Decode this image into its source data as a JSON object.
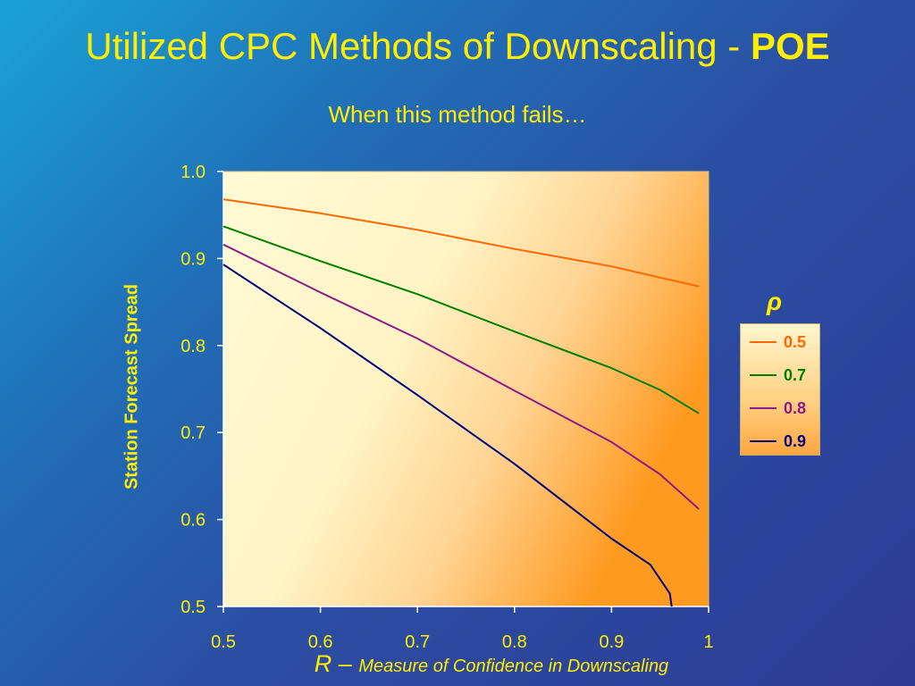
{
  "slide": {
    "title_main": "Utilized CPC Methods of Downscaling - ",
    "title_bold": "POE",
    "subtitle": "When this method fails…"
  },
  "chart_data": {
    "type": "line",
    "xlabel_prefix": "R – ",
    "xlabel": "Measure of Confidence in Downscaling",
    "ylabel": "Station Forecast Spread",
    "xlim": [
      0.5,
      1
    ],
    "ylim": [
      0.5,
      1.0
    ],
    "x_ticks": [
      "0.5",
      "0.6",
      "0.7",
      "0.8",
      "0.9",
      "1"
    ],
    "y_ticks": [
      "1.0",
      "0.9",
      "0.8",
      "0.7",
      "0.6",
      "0.5"
    ],
    "legend_title": "ρ",
    "legend_position": "right",
    "grid": false,
    "series": [
      {
        "name": "0.5",
        "color": "#ff6600",
        "points": [
          [
            0.5,
            0.968
          ],
          [
            0.6,
            0.952
          ],
          [
            0.7,
            0.933
          ],
          [
            0.8,
            0.911
          ],
          [
            0.9,
            0.891
          ],
          [
            0.95,
            0.878
          ],
          [
            0.99,
            0.868
          ]
        ]
      },
      {
        "name": "0.7",
        "color": "#008000",
        "points": [
          [
            0.5,
            0.937
          ],
          [
            0.6,
            0.897
          ],
          [
            0.7,
            0.859
          ],
          [
            0.8,
            0.816
          ],
          [
            0.9,
            0.774
          ],
          [
            0.95,
            0.749
          ],
          [
            0.99,
            0.722
          ]
        ]
      },
      {
        "name": "0.8",
        "color": "#8b1a8b",
        "points": [
          [
            0.5,
            0.916
          ],
          [
            0.6,
            0.861
          ],
          [
            0.7,
            0.808
          ],
          [
            0.8,
            0.748
          ],
          [
            0.9,
            0.689
          ],
          [
            0.95,
            0.652
          ],
          [
            0.99,
            0.612
          ]
        ]
      },
      {
        "name": "0.9",
        "color": "#000080",
        "points": [
          [
            0.5,
            0.893
          ],
          [
            0.6,
            0.82
          ],
          [
            0.7,
            0.743
          ],
          [
            0.8,
            0.664
          ],
          [
            0.9,
            0.578
          ],
          [
            0.94,
            0.548
          ],
          [
            0.96,
            0.515
          ],
          [
            0.962,
            0.5
          ]
        ]
      }
    ]
  }
}
